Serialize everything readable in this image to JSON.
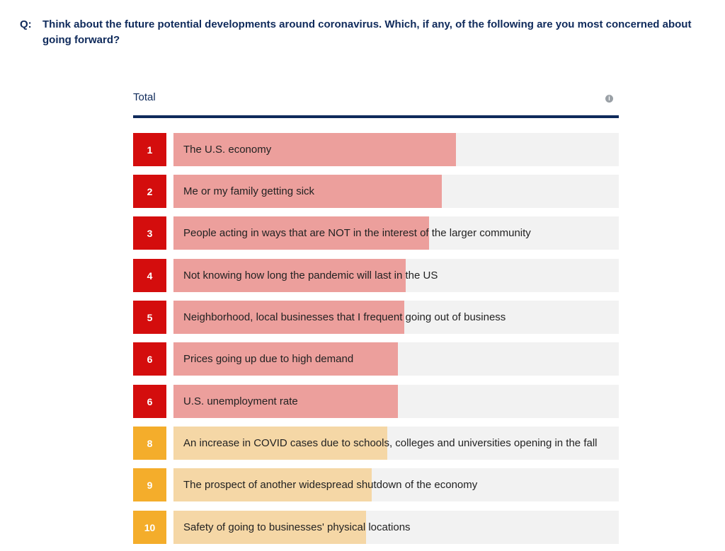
{
  "question": {
    "prefix": "Q:",
    "text": "Think about the future potential developments around coronavirus. Which, if any, of the following are you most concerned about going forward?"
  },
  "panel": {
    "title": "Total",
    "info_icon": "info-icon"
  },
  "colors": {
    "header_navy": "#0f2a5b",
    "rank_red": "#d40d0d",
    "bar_red": "#ec9f9c",
    "rank_orange": "#f4ad2b",
    "bar_orange": "#f5d7a6",
    "track": "#f2f2f2"
  },
  "chart_data": {
    "type": "bar",
    "orientation": "horizontal",
    "title": "Total",
    "xlim": [
      0,
      100
    ],
    "items": [
      {
        "rank": "1",
        "label": "The U.S. economy",
        "value": 63.5,
        "tier": "top"
      },
      {
        "rank": "2",
        "label": "Me or my family getting sick",
        "value": 60.3,
        "tier": "top"
      },
      {
        "rank": "3",
        "label": "People acting in ways that are NOT in the interest of the larger community",
        "value": 57.4,
        "tier": "top"
      },
      {
        "rank": "4",
        "label": "Not knowing how long the pandemic will last in the US",
        "value": 52.1,
        "tier": "top"
      },
      {
        "rank": "5",
        "label": "Neighborhood, local businesses that I frequent going out of business",
        "value": 51.8,
        "tier": "top"
      },
      {
        "rank": "6",
        "label": "Prices going up due to high demand",
        "value": 50.4,
        "tier": "top"
      },
      {
        "rank": "6",
        "label": "U.S. unemployment rate",
        "value": 50.4,
        "tier": "top"
      },
      {
        "rank": "8",
        "label": "An increase in COVID cases due to schools, colleges and universities opening in the fall",
        "value": 48.0,
        "tier": "other"
      },
      {
        "rank": "9",
        "label": "The prospect of another widespread shutdown of the economy",
        "value": 44.5,
        "tier": "other"
      },
      {
        "rank": "10",
        "label": "Safety of going to businesses' physical locations",
        "value": 43.2,
        "tier": "other"
      }
    ]
  }
}
